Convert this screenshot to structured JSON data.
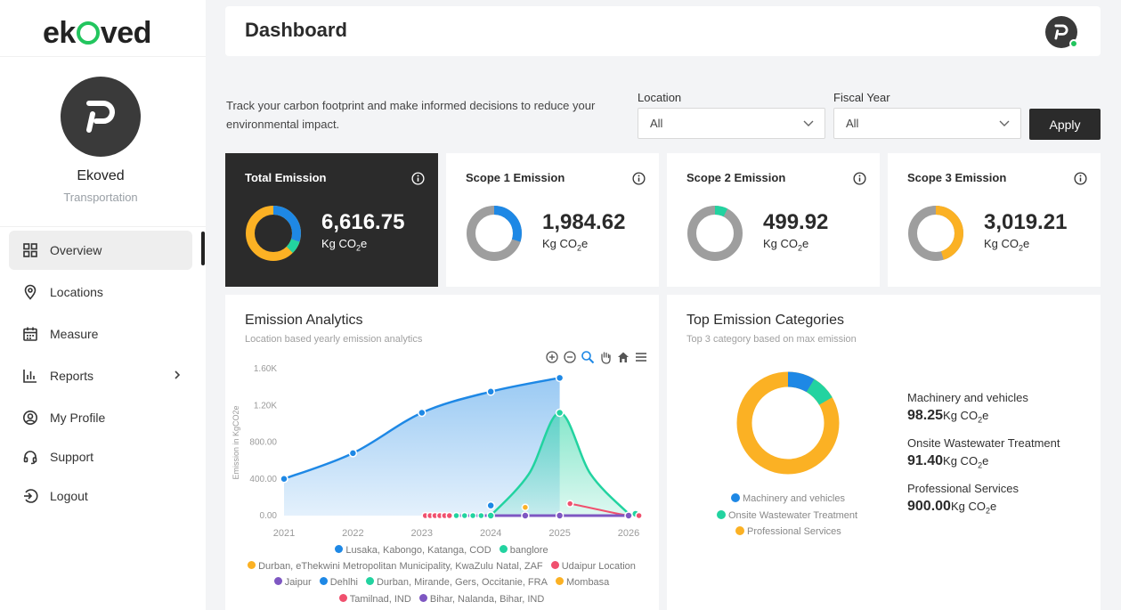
{
  "brand": {
    "logo_left": "ek",
    "logo_right": "ved"
  },
  "user": {
    "name": "Ekoved",
    "role": "Transportation"
  },
  "nav": [
    {
      "label": "Overview"
    },
    {
      "label": "Locations"
    },
    {
      "label": "Measure"
    },
    {
      "label": "Reports"
    },
    {
      "label": "My Profile"
    },
    {
      "label": "Support"
    },
    {
      "label": "Logout"
    }
  ],
  "header": {
    "title": "Dashboard"
  },
  "intro": "Track your carbon footprint and make informed decisions to reduce your environmental impact.",
  "filters": {
    "location_label": "Location",
    "location_value": "All",
    "fiscal_label": "Fiscal Year",
    "fiscal_value": "All",
    "apply_label": "Apply"
  },
  "kpis": [
    {
      "title": "Total Emission",
      "value": "6,616.75",
      "unit_prefix": "Kg CO",
      "unit_sub": "2",
      "unit_suffix": "e"
    },
    {
      "title": "Scope 1 Emission",
      "value": "1,984.62",
      "unit_prefix": "Kg CO",
      "unit_sub": "2",
      "unit_suffix": "e"
    },
    {
      "title": "Scope 2 Emission",
      "value": "499.92",
      "unit_prefix": "Kg CO",
      "unit_sub": "2",
      "unit_suffix": "e"
    },
    {
      "title": "Scope 3 Emission",
      "value": "3,019.21",
      "unit_prefix": "Kg CO",
      "unit_sub": "2",
      "unit_suffix": "e"
    }
  ],
  "colors": {
    "blue": "#1e88e5",
    "green": "#22d3a0",
    "orange": "#fbb124",
    "red": "#f0506e",
    "purple": "#7e57c2",
    "gray": "#9e9e9e",
    "dark": "#2b2b2b"
  },
  "analytics": {
    "title": "Emission Analytics",
    "subtitle": "Location based yearly emission analytics",
    "toolbar_icons": [
      "zoom-in-icon",
      "zoom-out-icon",
      "zoom-select-icon",
      "pan-hand-icon",
      "home-icon",
      "menu-icon"
    ]
  },
  "chart_data": {
    "type": "area",
    "ylabel": "Emission in KgCO2e",
    "ytick_labels": [
      "0.00",
      "400.00",
      "800.00",
      "1.20K",
      "1.60K"
    ],
    "ylim": [
      0,
      1600
    ],
    "x": [
      "2021",
      "2022",
      "2023",
      "2024",
      "2025",
      "2026"
    ],
    "series": [
      {
        "name": "Lusaka, Kabongo, Katanga, COD",
        "color": "#1e88e5",
        "x": [
          2021,
          2022,
          2023,
          2024,
          2025
        ],
        "values": [
          400,
          680,
          1120,
          1350,
          1500
        ]
      },
      {
        "name": "banglore",
        "color": "#22d3a0",
        "x": [
          2024,
          2025,
          2026
        ],
        "values": [
          0,
          1120,
          20
        ]
      },
      {
        "name": "Durban, eThekwini Metropolitan Municipality, KwaZulu Natal, ZAF",
        "color": "#fbb124",
        "x": [
          2024.5
        ],
        "values": [
          100
        ]
      },
      {
        "name": "Udaipur Location",
        "color": "#f0506e",
        "x": [
          2023,
          2023.1,
          2023.2,
          2023.3,
          2023.4,
          2025.15,
          2026
        ],
        "values": [
          0,
          0,
          0,
          0,
          0,
          130,
          0
        ]
      },
      {
        "name": "Jaipur",
        "color": "#7e57c2",
        "x": [
          2024,
          2024.5,
          2025,
          2026
        ],
        "values": [
          0,
          0,
          0,
          0
        ]
      },
      {
        "name": "Dehlhi",
        "color": "#1e88e5",
        "x": [
          2024
        ],
        "values": [
          120
        ]
      },
      {
        "name": "Durban, Mirande, Gers, Occitanie, FRA",
        "color": "#22d3a0",
        "x": [
          2023.5,
          2023.7,
          2023.9
        ],
        "values": [
          0,
          0,
          0
        ]
      },
      {
        "name": "Mombasa",
        "color": "#fbb124",
        "x": [],
        "values": []
      },
      {
        "name": "Tamilnad, IND",
        "color": "#f0506e",
        "x": [
          2026.15
        ],
        "values": [
          0
        ]
      },
      {
        "name": "Bihar, Nalanda, Bihar, IND",
        "color": "#7e57c2",
        "x": [],
        "values": []
      }
    ]
  },
  "top_categories": {
    "title": "Top Emission Categories",
    "subtitle": "Top 3 category based on max emission",
    "items": [
      {
        "label": "Machinery and vehicles",
        "value": "98.25",
        "color": "#1e88e5"
      },
      {
        "label": "Onsite Wastewater Treatment",
        "value": "91.40",
        "color": "#22d3a0"
      },
      {
        "label": "Professional Services",
        "value": "900.00",
        "color": "#fbb124"
      }
    ],
    "unit_prefix": "Kg CO",
    "unit_sub": "2",
    "unit_suffix": "e"
  }
}
